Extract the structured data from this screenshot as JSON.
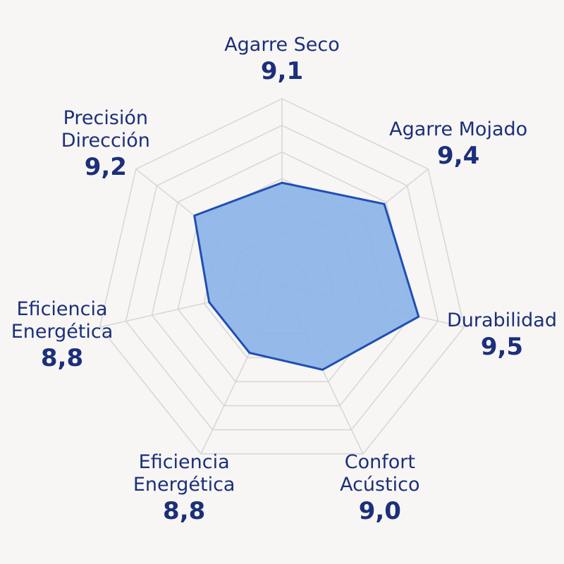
{
  "chart_data": {
    "type": "radar",
    "categories": [
      "Agarre Seco",
      "Agarre Mojado",
      "Durabilidad",
      "Confort Acústico",
      "Eficiencia Energética",
      "Eficiencia Energética",
      "Precisión Dirección"
    ],
    "values": [
      9.1,
      9.4,
      9.5,
      9.0,
      8.8,
      8.8,
      9.2
    ],
    "value_labels": [
      "9,1",
      "9,4",
      "9,5",
      "9,0",
      "8,8",
      "8,8",
      "9,2"
    ],
    "rlim": [
      8,
      10
    ],
    "color": "#1f4fb4",
    "fill": "#8ab4e8"
  }
}
